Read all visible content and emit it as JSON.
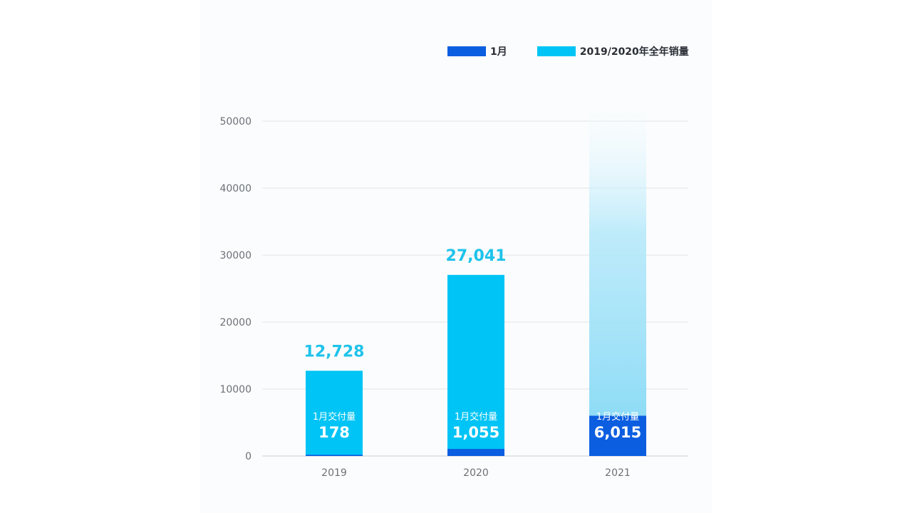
{
  "colors": {
    "january": "#0c5ee0",
    "annual": "#00c4f5",
    "annual_label": "#1ec3ea",
    "grid": "#dfe3e8",
    "axis_text": "#6b7178"
  },
  "legend": {
    "january": "1月",
    "annual": "2019/2020年全年销量"
  },
  "chart_data": {
    "type": "bar",
    "stacked": true,
    "categories": [
      "2019",
      "2020",
      "2021"
    ],
    "ylim": [
      0,
      50000
    ],
    "yticks": [
      "0",
      "10000",
      "20000",
      "30000",
      "40000",
      "50000"
    ],
    "grid": true,
    "legend_position": "top-right",
    "series": [
      {
        "name": "1月",
        "values": [
          178,
          1055,
          6015
        ]
      },
      {
        "name": "2019/2020年全年销量",
        "values": [
          12728,
          27041,
          null
        ]
      }
    ],
    "annual_labels": [
      "12,728",
      "27,041",
      ""
    ],
    "january_caption": "1月交付量",
    "january_labels": [
      "178",
      "1,055",
      "6,015"
    ],
    "projection_2021": "gradient bar fading upward above the 1月 bar"
  }
}
